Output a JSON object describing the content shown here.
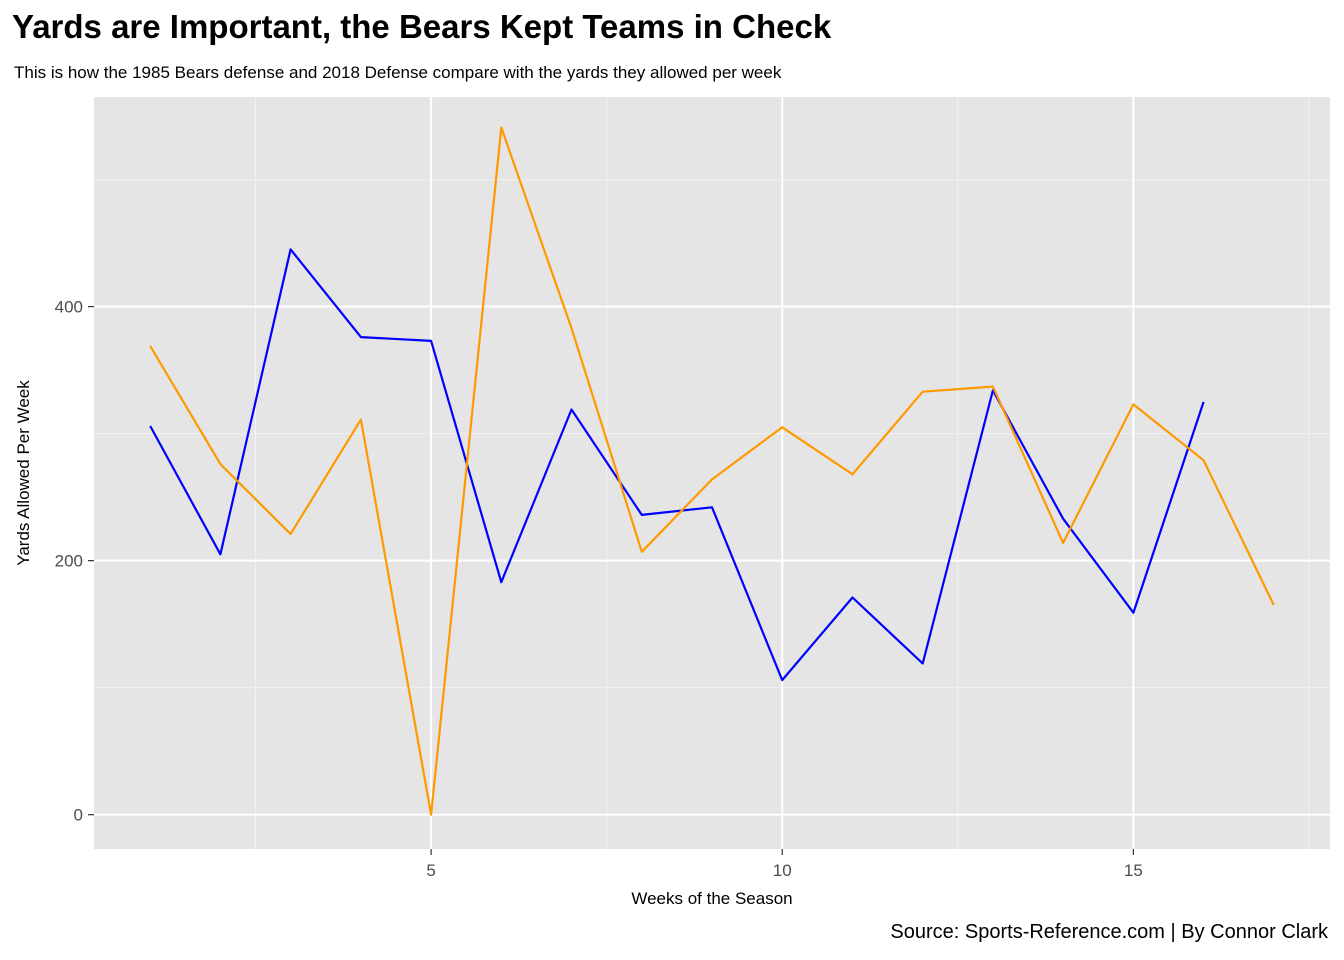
{
  "chart_data": {
    "type": "line",
    "title": "Yards are Important, the Bears Kept Teams in Check",
    "subtitle": "This is how the 1985 Bears defense and 2018 Defense compare with the yards they allowed per week",
    "caption": "Source: Sports-Reference.com | By Connor Clark",
    "xlabel": "Weeks of the Season",
    "ylabel": "Yards Allowed Per Week",
    "xlim": [
      0.2,
      17.8
    ],
    "ylim": [
      -27,
      565
    ],
    "xticks": [
      5,
      10,
      15
    ],
    "yticks": [
      0,
      200,
      400
    ],
    "grid": true,
    "legend": "none",
    "series": [
      {
        "color": "#0000ff",
        "x": [
          1,
          2,
          3,
          4,
          5,
          6,
          7,
          8,
          9,
          10,
          11,
          12,
          13,
          14,
          15,
          16
        ],
        "y": [
          306,
          205,
          445,
          376,
          373,
          183,
          319,
          236,
          242,
          106,
          171,
          119,
          334,
          233,
          159,
          325
        ]
      },
      {
        "color": "#ff9900",
        "x": [
          1,
          2,
          3,
          4,
          5,
          6,
          7,
          8,
          9,
          10,
          11,
          12,
          13,
          14,
          15,
          16,
          17
        ],
        "y": [
          369,
          276,
          221,
          311,
          0,
          541,
          383,
          207,
          264,
          305,
          268,
          333,
          337,
          214,
          323,
          279,
          165
        ]
      }
    ]
  }
}
